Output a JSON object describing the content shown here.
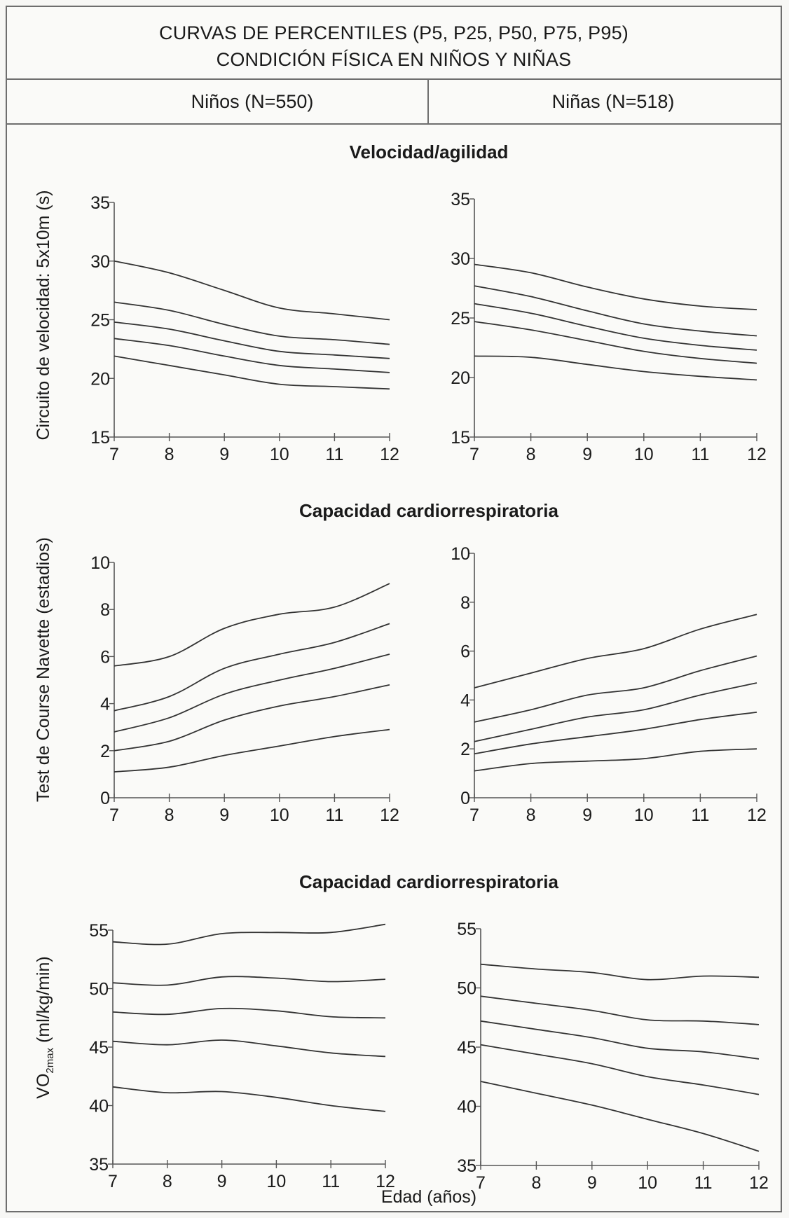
{
  "header": {
    "title_line1": "CURVAS DE PERCENTILES (P5, P25, P50, P75, P95)",
    "title_line2": "CONDICIÓN FÍSICA EN NIÑOS Y NIÑAS",
    "col_boys": "Niños (N=550)",
    "col_girls": "Niñas (N=518)"
  },
  "xlabel": "Edad (años)",
  "chart_data": [
    {
      "type": "line",
      "section_title": "Velocidad/agilidad",
      "ylabel": "Circuito de velocidad: 5x10m  (s)",
      "panels": [
        {
          "panel": "Niños (N=550)",
          "x": [
            7,
            8,
            9,
            10,
            11,
            12
          ],
          "ylim": [
            15,
            35
          ],
          "yticks": [
            15,
            20,
            25,
            30,
            35
          ],
          "series": [
            {
              "values": [
                30.0,
                29.0,
                27.5,
                26.0,
                25.5,
                25.0
              ]
            },
            {
              "values": [
                26.5,
                25.8,
                24.6,
                23.6,
                23.3,
                22.9
              ]
            },
            {
              "values": [
                24.8,
                24.2,
                23.2,
                22.3,
                22.0,
                21.7
              ]
            },
            {
              "values": [
                23.4,
                22.8,
                21.9,
                21.1,
                20.8,
                20.5
              ]
            },
            {
              "values": [
                21.9,
                21.1,
                20.3,
                19.5,
                19.3,
                19.1
              ]
            }
          ]
        },
        {
          "panel": "Niñas (N=518)",
          "x": [
            7,
            8,
            9,
            10,
            11,
            12
          ],
          "ylim": [
            15,
            35
          ],
          "yticks": [
            15,
            20,
            25,
            30,
            35
          ],
          "series": [
            {
              "values": [
                29.5,
                28.8,
                27.6,
                26.6,
                26.0,
                25.7
              ]
            },
            {
              "values": [
                27.7,
                26.8,
                25.6,
                24.5,
                23.9,
                23.5
              ]
            },
            {
              "values": [
                26.2,
                25.4,
                24.3,
                23.3,
                22.7,
                22.3
              ]
            },
            {
              "values": [
                24.7,
                24.0,
                23.1,
                22.2,
                21.6,
                21.2
              ]
            },
            {
              "values": [
                21.8,
                21.7,
                21.1,
                20.5,
                20.1,
                19.8
              ]
            }
          ]
        }
      ]
    },
    {
      "type": "line",
      "section_title": "Capacidad cardiorrespiratoria",
      "ylabel": "Test de Course Navette (estadios)",
      "panels": [
        {
          "panel": "Niños (N=550)",
          "x": [
            7,
            8,
            9,
            10,
            11,
            12
          ],
          "ylim": [
            0,
            10
          ],
          "yticks": [
            0,
            2,
            4,
            6,
            8,
            10
          ],
          "series": [
            {
              "values": [
                5.6,
                6.0,
                7.2,
                7.8,
                8.1,
                9.1
              ]
            },
            {
              "values": [
                3.7,
                4.3,
                5.5,
                6.1,
                6.6,
                7.4
              ]
            },
            {
              "values": [
                2.8,
                3.4,
                4.4,
                5.0,
                5.5,
                6.1
              ]
            },
            {
              "values": [
                2.0,
                2.4,
                3.3,
                3.9,
                4.3,
                4.8
              ]
            },
            {
              "values": [
                1.1,
                1.3,
                1.8,
                2.2,
                2.6,
                2.9
              ]
            }
          ]
        },
        {
          "panel": "Niñas (N=518)",
          "x": [
            7,
            8,
            9,
            10,
            11,
            12
          ],
          "ylim": [
            0,
            10
          ],
          "yticks": [
            0,
            2,
            4,
            6,
            8,
            10
          ],
          "series": [
            {
              "values": [
                4.5,
                5.1,
                5.7,
                6.1,
                6.9,
                7.5
              ]
            },
            {
              "values": [
                3.1,
                3.6,
                4.2,
                4.5,
                5.2,
                5.8
              ]
            },
            {
              "values": [
                2.3,
                2.8,
                3.3,
                3.6,
                4.2,
                4.7
              ]
            },
            {
              "values": [
                1.8,
                2.2,
                2.5,
                2.8,
                3.2,
                3.5
              ]
            },
            {
              "values": [
                1.1,
                1.4,
                1.5,
                1.6,
                1.9,
                2.0
              ]
            }
          ]
        }
      ]
    },
    {
      "type": "line",
      "section_title": "Capacidad cardiorrespiratoria",
      "ylabel": "VO2max (ml/kg/min)",
      "panels": [
        {
          "panel": "Niños (N=550)",
          "x": [
            7,
            8,
            9,
            10,
            11,
            12
          ],
          "ylim": [
            35,
            55
          ],
          "yticks": [
            35,
            40,
            45,
            50,
            55
          ],
          "series": [
            {
              "values": [
                54.0,
                53.8,
                54.7,
                54.8,
                54.8,
                55.5
              ]
            },
            {
              "values": [
                50.5,
                50.3,
                51.0,
                50.9,
                50.6,
                50.8
              ]
            },
            {
              "values": [
                48.0,
                47.8,
                48.3,
                48.1,
                47.6,
                47.5
              ]
            },
            {
              "values": [
                45.5,
                45.2,
                45.6,
                45.1,
                44.5,
                44.2
              ]
            },
            {
              "values": [
                41.6,
                41.1,
                41.2,
                40.7,
                40.0,
                39.5
              ]
            }
          ]
        },
        {
          "panel": "Niñas (N=518)",
          "x": [
            7,
            8,
            9,
            10,
            11,
            12
          ],
          "ylim": [
            35,
            55
          ],
          "yticks": [
            35,
            40,
            45,
            50,
            55
          ],
          "series": [
            {
              "values": [
                52.0,
                51.6,
                51.3,
                50.7,
                51.0,
                50.9
              ]
            },
            {
              "values": [
                49.3,
                48.7,
                48.1,
                47.3,
                47.2,
                46.9
              ]
            },
            {
              "values": [
                47.2,
                46.5,
                45.8,
                44.9,
                44.6,
                44.0
              ]
            },
            {
              "values": [
                45.2,
                44.4,
                43.6,
                42.5,
                41.8,
                41.0
              ]
            },
            {
              "values": [
                42.1,
                41.1,
                40.1,
                38.9,
                37.7,
                36.2
              ]
            }
          ]
        }
      ]
    }
  ]
}
